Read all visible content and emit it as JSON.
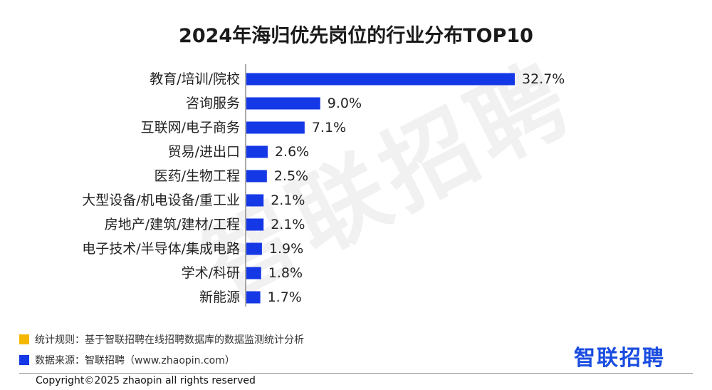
{
  "title": "2024年海归优先岗位的行业分布TOP10",
  "watermark_text": "智联招聘",
  "chart_data": {
    "type": "bar",
    "orientation": "horizontal",
    "title": "2024年海归优先岗位的行业分布TOP10",
    "categories": [
      "教育/培训/院校",
      "咨询服务",
      "互联网/电子商务",
      "贸易/进出口",
      "医药/生物工程",
      "大型设备/机电设备/重工业",
      "房地产/建筑/建材/工程",
      "电子技术/半导体/集成电路",
      "学术/科研",
      "新能源"
    ],
    "values": [
      32.7,
      9.0,
      7.1,
      2.6,
      2.5,
      2.1,
      2.1,
      1.9,
      1.8,
      1.7
    ],
    "value_labels": [
      "32.7%",
      "9.0%",
      "7.1%",
      "2.6%",
      "2.5%",
      "2.1%",
      "2.1%",
      "1.9%",
      "1.8%",
      "1.7%"
    ],
    "unit": "%",
    "bar_color": "#1538e6",
    "xlim": [
      0,
      32.7
    ],
    "grid": false,
    "legend": "none"
  },
  "footer": {
    "rule_label": "统计规则：基于智联招聘在线招聘数据库的数据监测统计分析",
    "rule_color": "#f5b800",
    "source_label": "数据来源：智联招聘（www.zhaopin.com）",
    "source_color": "#1538e6",
    "logo_text": "智联招聘",
    "logo_color": "#1a4de0",
    "copyright": "Copyright©2025 zhaopin all rights reserved"
  }
}
